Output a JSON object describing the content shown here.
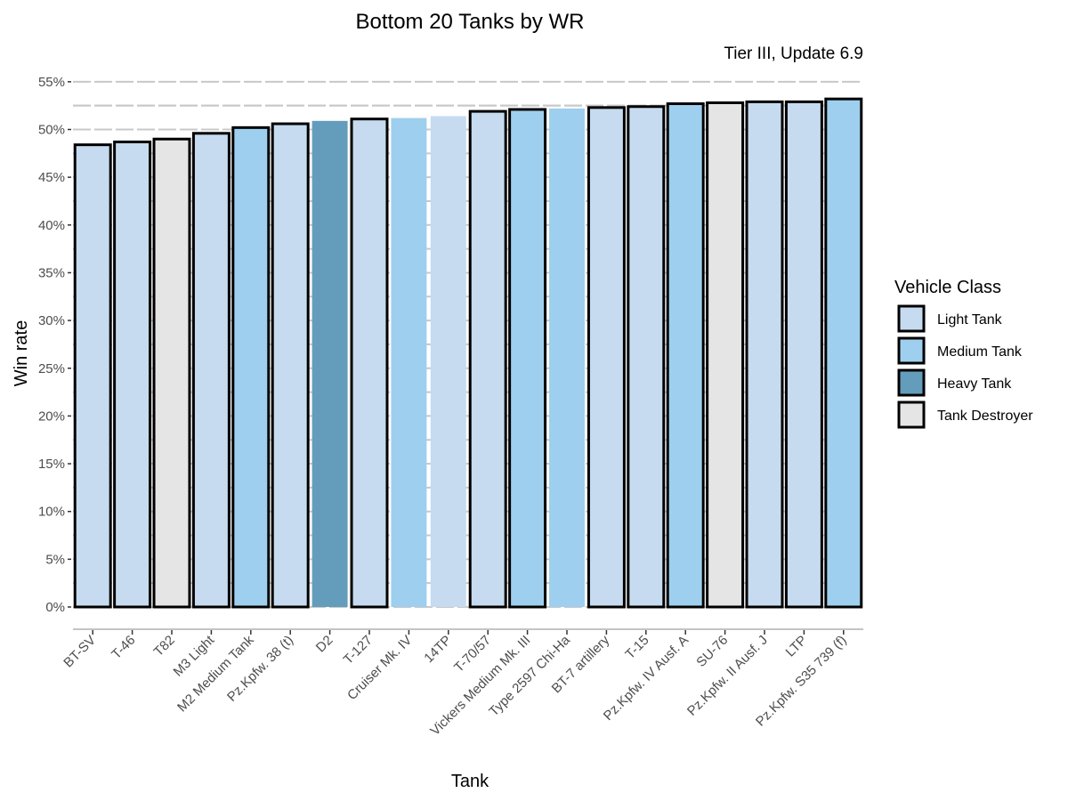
{
  "chart_data": {
    "type": "bar",
    "title": "Bottom 20 Tanks by WR",
    "subtitle": "Tier III, Update 6.9",
    "xlabel": "Tank",
    "ylabel": "Win rate",
    "ylim": [
      0,
      55
    ],
    "yticks": [
      "0%",
      "5%",
      "10%",
      "15%",
      "20%",
      "25%",
      "30%",
      "35%",
      "40%",
      "45%",
      "50%",
      "55%"
    ],
    "grid": "horizontal, light gray dashed",
    "legend": {
      "title": "Vehicle Class",
      "position": "right",
      "entries": [
        {
          "label": "Light Tank",
          "color": "#c6dbef"
        },
        {
          "label": "Medium Tank",
          "color": "#9ecfee"
        },
        {
          "label": "Heavy Tank",
          "color": "#639dbb"
        },
        {
          "label": "Tank Destroyer",
          "color": "#e5e5e5"
        }
      ]
    },
    "categories": [
      "BT-SV",
      "T-46",
      "T82",
      "M3 Light",
      "M2 Medium Tank",
      "Pz.Kpfw. 38 (t)",
      "D2",
      "T-127",
      "Cruiser Mk. IV",
      "14TP",
      "T-70/57",
      "Vickers Medium Mk. III",
      "Type 2597 Chi-Ha",
      "BT-7 artillery",
      "T-15",
      "Pz.Kpfw. IV Ausf. A",
      "SU-76",
      "Pz.Kpfw. II Ausf. J",
      "LTP",
      "Pz.Kpfw. S35 739 (f)"
    ],
    "values": [
      48.4,
      48.7,
      49.0,
      49.6,
      50.2,
      50.6,
      50.9,
      51.1,
      51.2,
      51.4,
      51.9,
      52.1,
      52.2,
      52.3,
      52.4,
      52.7,
      52.8,
      52.9,
      52.9,
      53.2
    ],
    "classes": [
      "Light Tank",
      "Light Tank",
      "Tank Destroyer",
      "Light Tank",
      "Medium Tank",
      "Light Tank",
      "Heavy Tank",
      "Light Tank",
      "Medium Tank",
      "Light Tank",
      "Light Tank",
      "Medium Tank",
      "Medium Tank",
      "Light Tank",
      "Light Tank",
      "Medium Tank",
      "Tank Destroyer",
      "Light Tank",
      "Light Tank",
      "Medium Tank"
    ]
  }
}
